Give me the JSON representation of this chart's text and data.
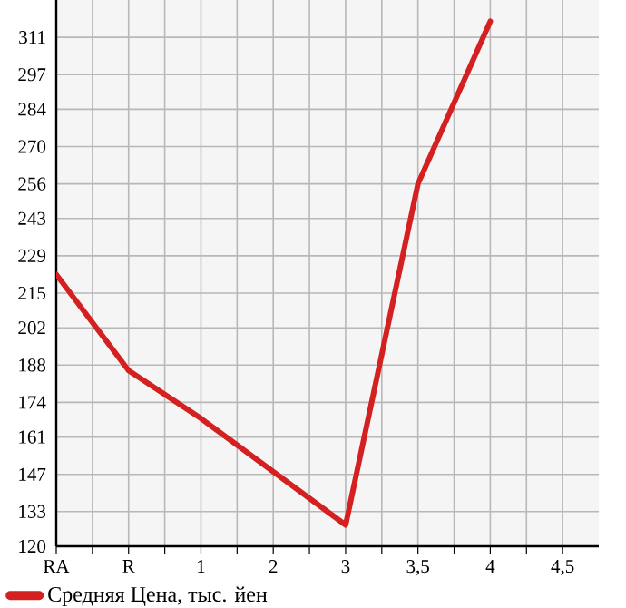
{
  "chart_data": {
    "type": "line",
    "categories": [
      "RA",
      "R",
      "1",
      "2",
      "3",
      "3,5",
      "4",
      "4,5"
    ],
    "series": [
      {
        "name": "Средняя Цена, тыс. йен",
        "color": "#d42020",
        "values": [
          222,
          186,
          168,
          148,
          128,
          256,
          317,
          null
        ]
      }
    ],
    "ylim": [
      120,
      325
    ],
    "yticks": [
      120,
      133,
      147,
      161,
      174,
      188,
      202,
      215,
      229,
      243,
      256,
      270,
      284,
      297,
      311
    ],
    "grid": true,
    "legend": "bottom",
    "marker": "none",
    "line_style": "solid"
  }
}
